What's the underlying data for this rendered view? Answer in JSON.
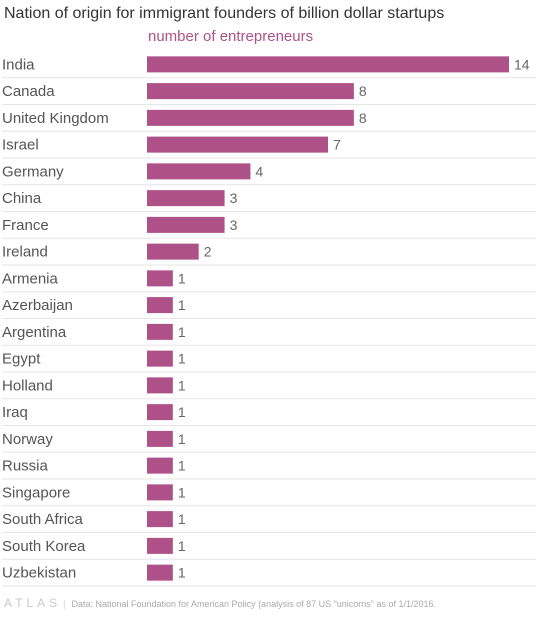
{
  "chart_data": {
    "type": "bar",
    "orientation": "horizontal",
    "title": "Nation of origin for immigrant founders of billion dollar startups",
    "subtitle": "number of entrepreneurs",
    "categories": [
      "India",
      "Canada",
      "United Kingdom",
      "Israel",
      "Germany",
      "China",
      "France",
      "Ireland",
      "Armenia",
      "Azerbaijan",
      "Argentina",
      "Egypt",
      "Holland",
      "Iraq",
      "Norway",
      "Russia",
      "Singapore",
      "South Africa",
      "South Korea",
      "Uzbekistan"
    ],
    "values": [
      14,
      8,
      8,
      7,
      4,
      3,
      3,
      2,
      1,
      1,
      1,
      1,
      1,
      1,
      1,
      1,
      1,
      1,
      1,
      1
    ],
    "xlim": [
      0,
      14
    ],
    "grid": true,
    "bar_color": "#ae5189",
    "subtitle_color": "#ae5189"
  },
  "footer": {
    "brand": "ATLAS",
    "separator": "|",
    "source": "Data: National Foundation for American Policy (analysis of 87 US \"unicorns\" as of 1/1/2016."
  }
}
